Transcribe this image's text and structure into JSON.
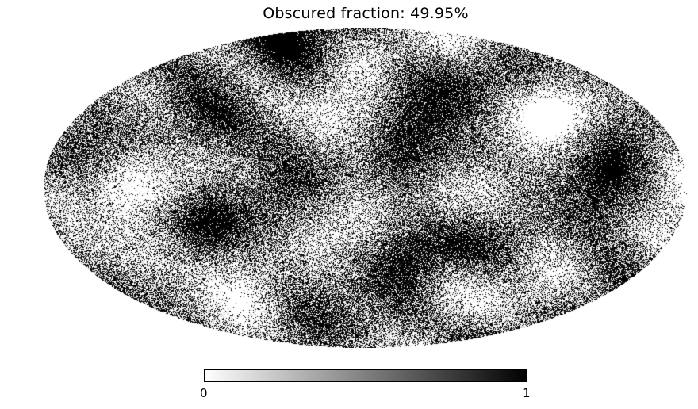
{
  "chart_data": {
    "type": "heatmap",
    "projection": "mollweide",
    "title": "Obscured fraction: 49.95%",
    "obscured_fraction_percent": 49.95,
    "colormap": [
      "#ffffff",
      "#000000"
    ],
    "colorbar": {
      "orientation": "horizontal",
      "min": 0,
      "max": 1,
      "ticks": [
        "0",
        "1"
      ]
    },
    "grid": false
  }
}
